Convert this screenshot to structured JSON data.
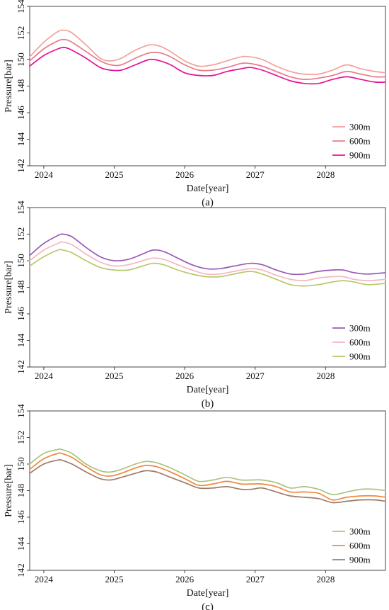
{
  "figure": {
    "panels": [
      {
        "caption": "(a)"
      },
      {
        "caption": "(b)"
      },
      {
        "caption": "(c)"
      }
    ]
  },
  "chart_data": [
    {
      "type": "line",
      "caption": "(a)",
      "xlabel": "Date[year]",
      "ylabel": "Pressure[bar]",
      "xlim": [
        2023.8,
        2028.85
      ],
      "ylim": [
        142,
        154
      ],
      "xticks": [
        2024,
        2025,
        2026,
        2027,
        2028
      ],
      "yticks": [
        142,
        144,
        146,
        148,
        150,
        152,
        154
      ],
      "legend_position": "bottom-right",
      "x": [
        2023.8,
        2024.0,
        2024.2,
        2024.3,
        2024.4,
        2024.6,
        2024.8,
        2024.95,
        2025.1,
        2025.3,
        2025.5,
        2025.65,
        2025.8,
        2026.0,
        2026.2,
        2026.4,
        2026.6,
        2026.8,
        2026.93,
        2027.1,
        2027.3,
        2027.5,
        2027.7,
        2027.9,
        2028.1,
        2028.3,
        2028.5,
        2028.7,
        2028.85
      ],
      "series": [
        {
          "name": "300m",
          "color": "#f4a09a",
          "values": [
            150.2,
            151.3,
            152.1,
            152.2,
            152.0,
            151.1,
            150.1,
            149.9,
            150.1,
            150.7,
            151.1,
            151.0,
            150.6,
            149.9,
            149.5,
            149.6,
            149.9,
            150.2,
            150.2,
            150.0,
            149.5,
            149.1,
            148.9,
            148.9,
            149.2,
            149.6,
            149.3,
            149.1,
            149.0
          ]
        },
        {
          "name": "600m",
          "color": "#e87b8a",
          "values": [
            149.9,
            150.8,
            151.4,
            151.5,
            151.3,
            150.6,
            149.9,
            149.6,
            149.6,
            150.1,
            150.5,
            150.5,
            150.2,
            149.6,
            149.2,
            149.2,
            149.4,
            149.7,
            149.7,
            149.5,
            149.1,
            148.7,
            148.5,
            148.6,
            148.8,
            149.1,
            148.9,
            148.7,
            148.7
          ]
        },
        {
          "name": "900m",
          "color": "#e8109a",
          "values": [
            149.5,
            150.3,
            150.8,
            150.9,
            150.7,
            150.1,
            149.4,
            149.2,
            149.2,
            149.6,
            150.0,
            149.9,
            149.6,
            149.0,
            148.8,
            148.8,
            149.1,
            149.3,
            149.4,
            149.2,
            148.8,
            148.4,
            148.2,
            148.2,
            148.5,
            148.7,
            148.5,
            148.3,
            148.3
          ]
        }
      ]
    },
    {
      "type": "line",
      "caption": "(b)",
      "xlabel": "Date[year]",
      "ylabel": "Pressure[bar]",
      "xlim": [
        2023.8,
        2028.85
      ],
      "ylim": [
        142,
        154
      ],
      "xticks": [
        2024,
        2025,
        2026,
        2027,
        2028
      ],
      "yticks": [
        142,
        144,
        146,
        148,
        150,
        152,
        154
      ],
      "legend_position": "bottom-right",
      "x": [
        2023.8,
        2024.0,
        2024.2,
        2024.27,
        2024.4,
        2024.6,
        2024.8,
        2025.0,
        2025.2,
        2025.4,
        2025.55,
        2025.7,
        2025.9,
        2026.1,
        2026.3,
        2026.5,
        2026.7,
        2026.93,
        2027.1,
        2027.3,
        2027.5,
        2027.7,
        2027.9,
        2028.1,
        2028.25,
        2028.4,
        2028.6,
        2028.85
      ],
      "series": [
        {
          "name": "300m",
          "color": "#9b59b6",
          "values": [
            150.4,
            151.3,
            151.9,
            152.0,
            151.8,
            151.0,
            150.3,
            150.0,
            150.1,
            150.5,
            150.8,
            150.7,
            150.2,
            149.7,
            149.4,
            149.4,
            149.6,
            149.8,
            149.7,
            149.3,
            149.0,
            149.0,
            149.2,
            149.3,
            149.3,
            149.1,
            149.0,
            149.1
          ]
        },
        {
          "name": "600m",
          "color": "#f7b6c2",
          "values": [
            150.0,
            150.8,
            151.3,
            151.4,
            151.2,
            150.5,
            149.9,
            149.6,
            149.7,
            150.0,
            150.2,
            150.1,
            149.7,
            149.3,
            149.0,
            149.0,
            149.2,
            149.4,
            149.3,
            148.9,
            148.6,
            148.5,
            148.7,
            148.8,
            148.8,
            148.6,
            148.5,
            148.6
          ]
        },
        {
          "name": "900m",
          "color": "#b8c96a",
          "values": [
            149.6,
            150.3,
            150.8,
            150.8,
            150.6,
            150.0,
            149.5,
            149.3,
            149.3,
            149.6,
            149.8,
            149.7,
            149.3,
            149.0,
            148.8,
            148.8,
            149.0,
            149.2,
            149.0,
            148.6,
            148.2,
            148.1,
            148.2,
            148.4,
            148.5,
            148.4,
            148.2,
            148.3
          ]
        }
      ]
    },
    {
      "type": "line",
      "caption": "(c)",
      "xlabel": "Date[year]",
      "ylabel": "Pressure[bar]",
      "xlim": [
        2023.8,
        2028.85
      ],
      "ylim": [
        142,
        154
      ],
      "xticks": [
        2024,
        2025,
        2026,
        2027,
        2028
      ],
      "yticks": [
        142,
        144,
        146,
        148,
        150,
        152,
        154
      ],
      "legend_position": "bottom-right",
      "x": [
        2023.8,
        2024.0,
        2024.2,
        2024.25,
        2024.4,
        2024.6,
        2024.8,
        2024.95,
        2025.1,
        2025.3,
        2025.45,
        2025.6,
        2025.8,
        2026.0,
        2026.2,
        2026.4,
        2026.6,
        2026.8,
        2026.95,
        2027.1,
        2027.3,
        2027.5,
        2027.7,
        2027.9,
        2028.1,
        2028.3,
        2028.5,
        2028.7,
        2028.85
      ],
      "series": [
        {
          "name": "300m",
          "color": "#a9c47f",
          "values": [
            150.0,
            150.8,
            151.1,
            151.1,
            150.8,
            150.0,
            149.5,
            149.4,
            149.6,
            150.0,
            150.2,
            150.1,
            149.7,
            149.2,
            148.7,
            148.8,
            149.0,
            148.8,
            148.8,
            148.8,
            148.6,
            148.2,
            148.3,
            148.1,
            147.7,
            147.9,
            148.1,
            148.1,
            148.0
          ]
        },
        {
          "name": "600m",
          "color": "#f0883e",
          "values": [
            149.6,
            150.4,
            150.8,
            150.8,
            150.5,
            149.8,
            149.2,
            149.1,
            149.3,
            149.7,
            149.9,
            149.8,
            149.4,
            148.9,
            148.4,
            148.5,
            148.7,
            148.5,
            148.5,
            148.5,
            148.3,
            147.9,
            147.9,
            147.8,
            147.3,
            147.5,
            147.6,
            147.6,
            147.5
          ]
        },
        {
          "name": "900m",
          "color": "#9c7b6a",
          "values": [
            149.3,
            150.0,
            150.3,
            150.3,
            150.0,
            149.4,
            148.9,
            148.8,
            149.0,
            149.3,
            149.5,
            149.4,
            149.0,
            148.6,
            148.2,
            148.2,
            148.3,
            148.1,
            148.1,
            148.2,
            147.9,
            147.6,
            147.5,
            147.4,
            147.1,
            147.2,
            147.3,
            147.3,
            147.2
          ]
        }
      ]
    }
  ]
}
